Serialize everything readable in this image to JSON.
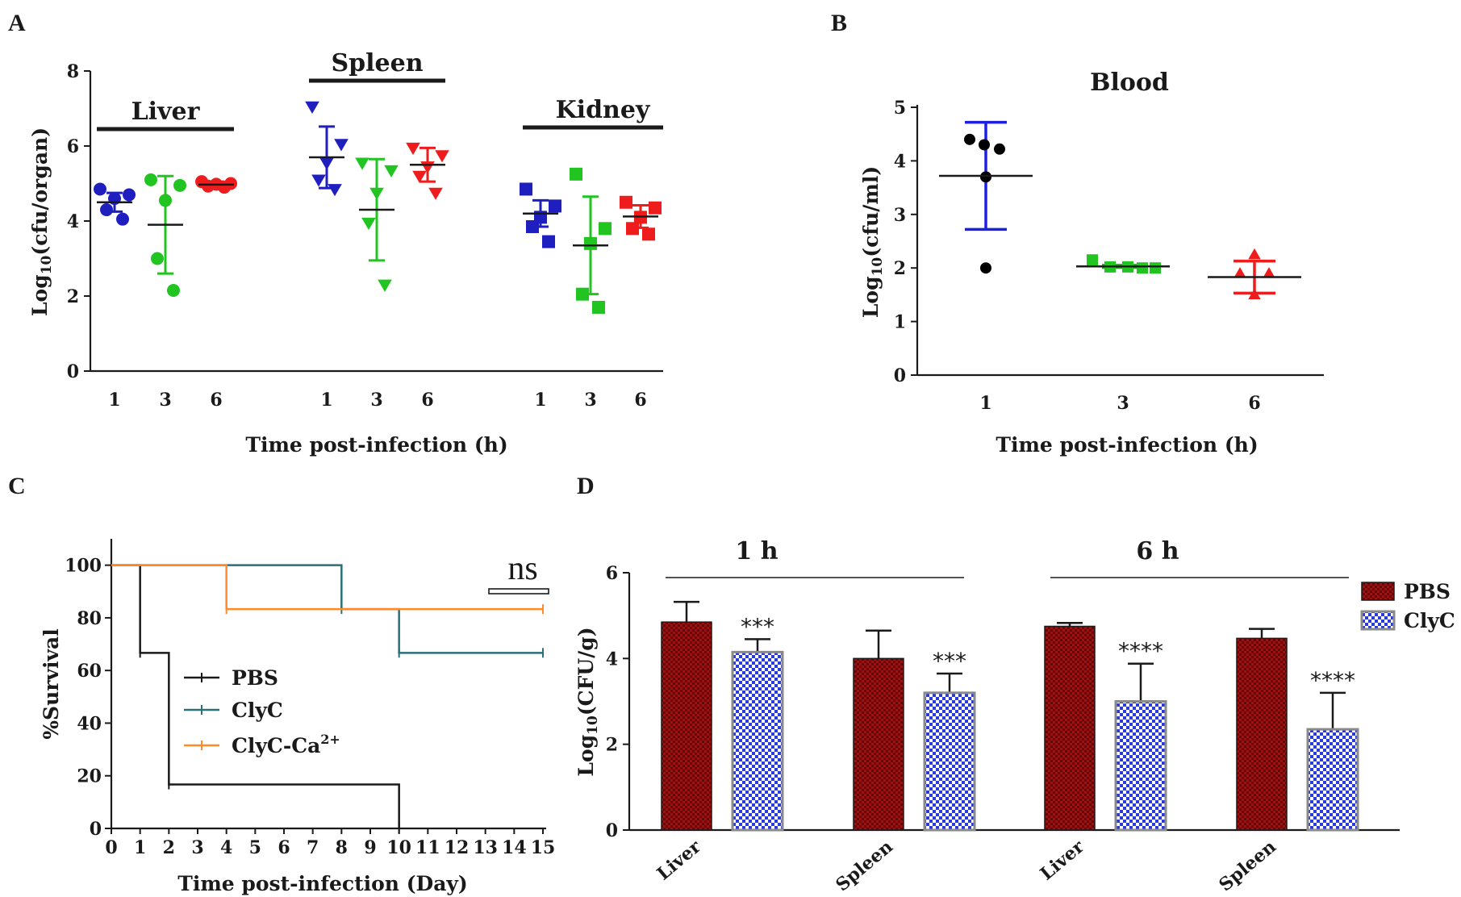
{
  "panels": {
    "A": {
      "letter": "A"
    },
    "B": {
      "letter": "B"
    },
    "C": {
      "letter": "C"
    },
    "D": {
      "letter": "D"
    }
  },
  "chart_data": [
    {
      "id": "A",
      "type": "scatter",
      "title": "",
      "xlabel": "Time post-infection (h)",
      "ylabel": "Log10(cfu/organ)",
      "ylabel_main": "Log",
      "ylabel_sub": "10",
      "ylabel_rest": "(cfu/organ)",
      "ylim": [
        0,
        8
      ],
      "yticks": [
        0,
        2,
        4,
        6,
        8
      ],
      "groups": [
        {
          "name": "Liver",
          "columns": [
            {
              "x": "1",
              "color": "#1f1fbf",
              "marker": "circle",
              "mean": 4.5,
              "sd": 0.25,
              "points": [
                4.85,
                4.7,
                4.6,
                4.3,
                4.05
              ]
            },
            {
              "x": "3",
              "color": "#22c422",
              "marker": "circle",
              "mean": 3.9,
              "sd": 1.3,
              "points": [
                5.1,
                4.95,
                4.55,
                3.0,
                2.15
              ]
            },
            {
              "x": "6",
              "color": "#ee1c1c",
              "marker": "circle",
              "mean": 4.97,
              "sd": 0.08,
              "points": [
                5.05,
                5.0,
                4.98,
                4.93,
                4.9
              ]
            }
          ]
        },
        {
          "name": "Spleen",
          "columns": [
            {
              "x": "1",
              "color": "#1f1fbf",
              "marker": "triangle-down",
              "mean": 5.7,
              "sd": 0.82,
              "points": [
                7.05,
                6.05,
                5.55,
                5.1,
                4.85
              ]
            },
            {
              "x": "3",
              "color": "#22c422",
              "marker": "triangle-down",
              "mean": 4.3,
              "sd": 1.35,
              "points": [
                5.55,
                5.35,
                4.75,
                3.95,
                2.3
              ]
            },
            {
              "x": "6",
              "color": "#ee1c1c",
              "marker": "triangle-down",
              "mean": 5.5,
              "sd": 0.45,
              "points": [
                5.95,
                5.75,
                5.45,
                5.2,
                4.75
              ]
            }
          ]
        },
        {
          "name": "Kidney",
          "columns": [
            {
              "x": "1",
              "color": "#1f1fbf",
              "marker": "square",
              "mean": 4.2,
              "sd": 0.35,
              "points": [
                4.85,
                4.4,
                4.1,
                3.85,
                3.45
              ]
            },
            {
              "x": "3",
              "color": "#22c422",
              "marker": "square",
              "mean": 3.35,
              "sd": 1.3,
              "points": [
                5.25,
                3.8,
                3.4,
                2.05,
                1.7
              ]
            },
            {
              "x": "6",
              "color": "#ee1c1c",
              "marker": "square",
              "mean": 4.12,
              "sd": 0.3,
              "points": [
                4.5,
                4.35,
                4.1,
                3.8,
                3.65
              ]
            }
          ]
        }
      ]
    },
    {
      "id": "B",
      "type": "scatter",
      "title": "Blood",
      "xlabel": "Time post-infection (h)",
      "ylabel": "Log10(cfu/ml)",
      "ylabel_main": "Log",
      "ylabel_sub": "10",
      "ylabel_rest": "(cfu/ml)",
      "ylim": [
        0,
        5
      ],
      "yticks": [
        0,
        1,
        2,
        3,
        4,
        5
      ],
      "columns": [
        {
          "x": "1",
          "color": "#1f1fe0",
          "marker_color": "#000000",
          "marker": "circle",
          "mean": 3.72,
          "sd": 1.0,
          "points": [
            4.4,
            4.3,
            4.22,
            3.7,
            2.0
          ]
        },
        {
          "x": "3",
          "color": "#22a022",
          "marker_color": "#22c422",
          "marker": "square",
          "mean": 2.03,
          "sd": 0.02,
          "points": [
            2.15,
            2.02,
            2.02,
            2.0,
            2.0
          ]
        },
        {
          "x": "6",
          "color": "#ee1c1c",
          "marker_color": "#ee1c1c",
          "marker": "triangle-up",
          "mean": 1.83,
          "sd": 0.3,
          "points": [
            2.25,
            1.9,
            1.9,
            1.5
          ]
        }
      ]
    },
    {
      "id": "C",
      "type": "line",
      "title": "",
      "xlabel": "Time post-infection (Day)",
      "ylabel": "%Survival",
      "xlim": [
        0,
        15
      ],
      "ylim": [
        0,
        110
      ],
      "xticks": [
        0,
        1,
        2,
        3,
        4,
        5,
        6,
        7,
        8,
        9,
        10,
        11,
        12,
        13,
        14,
        15
      ],
      "yticks": [
        0,
        20,
        40,
        60,
        80,
        100
      ],
      "annotation": "ns",
      "series": [
        {
          "name": "PBS",
          "color": "#1a1a1a",
          "steps": [
            [
              0,
              100
            ],
            [
              1,
              66.7
            ],
            [
              2,
              16.7
            ],
            [
              10,
              0
            ]
          ]
        },
        {
          "name": "ClyC",
          "color": "#2a6f7a",
          "steps": [
            [
              0,
              100
            ],
            [
              8,
              83.3
            ],
            [
              10,
              66.7
            ],
            [
              15,
              66.7
            ]
          ]
        },
        {
          "name": "ClyC-Ca2+",
          "label_main": "ClyC-Ca",
          "label_sup": "2+",
          "color": "#ff8a2a",
          "steps": [
            [
              0,
              100
            ],
            [
              4,
              83.3
            ],
            [
              15,
              83.3
            ]
          ]
        }
      ]
    },
    {
      "id": "D",
      "type": "bar",
      "title": "",
      "xlabel": "",
      "ylabel": "Log10(CFU/g)",
      "ylabel_main": "Log",
      "ylabel_sub": "10",
      "ylabel_rest": "(CFU/g)",
      "ylim": [
        0,
        6
      ],
      "yticks": [
        0,
        2,
        4,
        6
      ],
      "group_headers": [
        "1 h",
        "6 h"
      ],
      "categories": [
        "Liver",
        "Spleen",
        "Liver",
        "Spleen"
      ],
      "series": [
        {
          "name": "PBS",
          "color": "#9b0d0d",
          "values": [
            4.85,
            4.0,
            4.75,
            4.47
          ],
          "errors": [
            0.47,
            0.65,
            0.08,
            0.22
          ]
        },
        {
          "name": "ClyC",
          "color": "#2233dd",
          "values": [
            4.15,
            3.2,
            3.0,
            2.35
          ],
          "errors": [
            0.3,
            0.45,
            0.88,
            0.85
          ]
        }
      ],
      "significance": [
        "***",
        "***",
        "****",
        "****"
      ]
    }
  ]
}
